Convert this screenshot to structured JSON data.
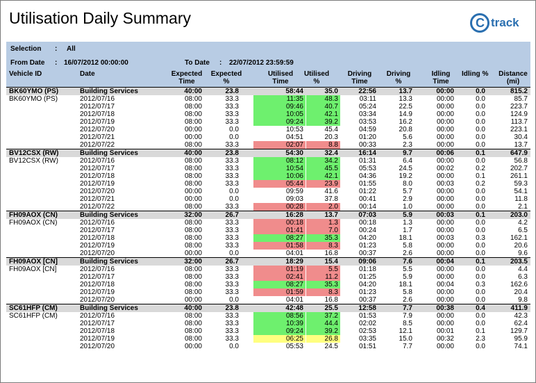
{
  "report": {
    "title": "Utilisation Daily Summary",
    "logo_text": "track",
    "logo_mark": "C",
    "selection_label": "Selection",
    "selection_value": "All",
    "from_label": "From Date",
    "from_value": "16/07/2012 00:00:00",
    "to_label": "To Date",
    "to_value": "22/07/2012 23:59:59",
    "colon": ":"
  },
  "columns": {
    "vehicle": "Vehicle ID",
    "date": "Date",
    "expected_time": [
      "Expected",
      "Time"
    ],
    "expected_pct": [
      "Expected",
      "%"
    ],
    "utilised_time": [
      "Utilised",
      "Time"
    ],
    "utilised_pct": [
      "Utilised",
      "%"
    ],
    "driving_time": [
      "Driving",
      "Time"
    ],
    "driving_pct": [
      "Driving",
      "%"
    ],
    "idling_time": [
      "Idling",
      "Time"
    ],
    "idling_pct": [
      "Idling %",
      ""
    ],
    "distance": [
      "Distance",
      "(mi)"
    ]
  },
  "colors": {
    "green": "#6ef06e",
    "red": "#f08c8c",
    "yellow": "#ffff80",
    "header_bg": "#b8cce4",
    "group_bg": "#d9d9d9"
  },
  "rows": [
    {
      "g": 1,
      "veh": "BK60YMO (PS)",
      "date": "Building Services",
      "exp": "40:00",
      "expp": "23.8",
      "util": "58:44",
      "utilp": "35.0",
      "drv": "22:56",
      "drvp": "13.7",
      "idl": "00:00",
      "idlp": "0.0",
      "dist": "815.2",
      "hl": ""
    },
    {
      "g": 0,
      "veh": "BK60YMO (PS)",
      "date": "2012/07/16",
      "exp": "08:00",
      "expp": "33.3",
      "util": "11:35",
      "utilp": "48.3",
      "drv": "03:11",
      "drvp": "13.3",
      "idl": "00:00",
      "idlp": "0.0",
      "dist": "85.7",
      "hl": "green"
    },
    {
      "g": 0,
      "veh": "",
      "date": "2012/07/17",
      "exp": "08:00",
      "expp": "33.3",
      "util": "09:46",
      "utilp": "40.7",
      "drv": "05:24",
      "drvp": "22.5",
      "idl": "00:00",
      "idlp": "0.0",
      "dist": "223.7",
      "hl": "green"
    },
    {
      "g": 0,
      "veh": "",
      "date": "2012/07/18",
      "exp": "08:00",
      "expp": "33.3",
      "util": "10:05",
      "utilp": "42.1",
      "drv": "03:34",
      "drvp": "14.9",
      "idl": "00:00",
      "idlp": "0.0",
      "dist": "124.9",
      "hl": "green"
    },
    {
      "g": 0,
      "veh": "",
      "date": "2012/07/19",
      "exp": "08:00",
      "expp": "33.3",
      "util": "09:24",
      "utilp": "39.2",
      "drv": "03:53",
      "drvp": "16.2",
      "idl": "00:00",
      "idlp": "0.0",
      "dist": "113.7",
      "hl": "green"
    },
    {
      "g": 0,
      "veh": "",
      "date": "2012/07/20",
      "exp": "00:00",
      "expp": "0.0",
      "util": "10:53",
      "utilp": "45.4",
      "drv": "04:59",
      "drvp": "20.8",
      "idl": "00:00",
      "idlp": "0.0",
      "dist": "223.1",
      "hl": ""
    },
    {
      "g": 0,
      "veh": "",
      "date": "2012/07/21",
      "exp": "00:00",
      "expp": "0.0",
      "util": "04:51",
      "utilp": "20.3",
      "drv": "01:20",
      "drvp": "5.6",
      "idl": "00:00",
      "idlp": "0.0",
      "dist": "30.4",
      "hl": ""
    },
    {
      "g": 0,
      "veh": "",
      "date": "2012/07/22",
      "exp": "08:00",
      "expp": "33.3",
      "util": "02:07",
      "utilp": "8.8",
      "drv": "00:33",
      "drvp": "2.3",
      "idl": "00:00",
      "idlp": "0.0",
      "dist": "13.7",
      "hl": "red"
    },
    {
      "g": 1,
      "veh": "BV12CSX (RW)",
      "date": "Building Services",
      "exp": "40:00",
      "expp": "23.8",
      "util": "54:30",
      "utilp": "32.4",
      "drv": "16:14",
      "drvp": "9.7",
      "idl": "00:06",
      "idlp": "0.1",
      "dist": "647.9",
      "hl": ""
    },
    {
      "g": 0,
      "veh": "BV12CSX (RW)",
      "date": "2012/07/16",
      "exp": "08:00",
      "expp": "33.3",
      "util": "08:12",
      "utilp": "34.2",
      "drv": "01:31",
      "drvp": "6.4",
      "idl": "00:00",
      "idlp": "0.0",
      "dist": "56.8",
      "hl": "green"
    },
    {
      "g": 0,
      "veh": "",
      "date": "2012/07/17",
      "exp": "08:00",
      "expp": "33.3",
      "util": "10:54",
      "utilp": "45.5",
      "drv": "05:53",
      "drvp": "24.5",
      "idl": "00:02",
      "idlp": "0.2",
      "dist": "202.7",
      "hl": "green"
    },
    {
      "g": 0,
      "veh": "",
      "date": "2012/07/18",
      "exp": "08:00",
      "expp": "33.3",
      "util": "10:06",
      "utilp": "42.1",
      "drv": "04:36",
      "drvp": "19.2",
      "idl": "00:00",
      "idlp": "0.1",
      "dist": "261.1",
      "hl": "green"
    },
    {
      "g": 0,
      "veh": "",
      "date": "2012/07/19",
      "exp": "08:00",
      "expp": "33.3",
      "util": "05:44",
      "utilp": "23.9",
      "drv": "01:55",
      "drvp": "8.0",
      "idl": "00:03",
      "idlp": "0.2",
      "dist": "59.3",
      "hl": "red"
    },
    {
      "g": 0,
      "veh": "",
      "date": "2012/07/20",
      "exp": "00:00",
      "expp": "0.0",
      "util": "09:59",
      "utilp": "41.6",
      "drv": "01:22",
      "drvp": "5.7",
      "idl": "00:00",
      "idlp": "0.0",
      "dist": "54.1",
      "hl": ""
    },
    {
      "g": 0,
      "veh": "",
      "date": "2012/07/21",
      "exp": "00:00",
      "expp": "0.0",
      "util": "09:03",
      "utilp": "37.8",
      "drv": "00:41",
      "drvp": "2.9",
      "idl": "00:00",
      "idlp": "0.0",
      "dist": "11.8",
      "hl": ""
    },
    {
      "g": 0,
      "veh": "",
      "date": "2012/07/22",
      "exp": "08:00",
      "expp": "33.3",
      "util": "00:28",
      "utilp": "2.0",
      "drv": "00:14",
      "drvp": "1.0",
      "idl": "00:00",
      "idlp": "0.0",
      "dist": "2.1",
      "hl": "red"
    },
    {
      "g": 1,
      "veh": "FH09AOX (CN)",
      "date": "Building Services",
      "exp": "32:00",
      "expp": "26.7",
      "util": "16:28",
      "utilp": "13.7",
      "drv": "07:03",
      "drvp": "5.9",
      "idl": "00:03",
      "idlp": "0.1",
      "dist": "203.0",
      "hl": ""
    },
    {
      "g": 0,
      "veh": "FH09AOX (CN)",
      "date": "2012/07/16",
      "exp": "08:00",
      "expp": "33.3",
      "util": "00:18",
      "utilp": "1.3",
      "drv": "00:18",
      "drvp": "1.3",
      "idl": "00:00",
      "idlp": "0.0",
      "dist": "4.2",
      "hl": "red"
    },
    {
      "g": 0,
      "veh": "",
      "date": "2012/07/17",
      "exp": "08:00",
      "expp": "33.3",
      "util": "01:41",
      "utilp": "7.0",
      "drv": "00:24",
      "drvp": "1.7",
      "idl": "00:00",
      "idlp": "0.0",
      "dist": "6.5",
      "hl": "red"
    },
    {
      "g": 0,
      "veh": "",
      "date": "2012/07/18",
      "exp": "08:00",
      "expp": "33.3",
      "util": "08:27",
      "utilp": "35.3",
      "drv": "04:20",
      "drvp": "18.1",
      "idl": "00:03",
      "idlp": "0.3",
      "dist": "162.1",
      "hl": "green"
    },
    {
      "g": 0,
      "veh": "",
      "date": "2012/07/19",
      "exp": "08:00",
      "expp": "33.3",
      "util": "01:58",
      "utilp": "8.3",
      "drv": "01:23",
      "drvp": "5.8",
      "idl": "00:00",
      "idlp": "0.0",
      "dist": "20.6",
      "hl": "red"
    },
    {
      "g": 0,
      "veh": "",
      "date": "2012/07/20",
      "exp": "00:00",
      "expp": "0.0",
      "util": "04:01",
      "utilp": "16.8",
      "drv": "00:37",
      "drvp": "2.6",
      "idl": "00:00",
      "idlp": "0.0",
      "dist": "9.6",
      "hl": ""
    },
    {
      "g": 1,
      "veh": "FH09AOX [CN]",
      "date": "Building Services",
      "exp": "32:00",
      "expp": "26.7",
      "util": "18:29",
      "utilp": "15.4",
      "drv": "09:06",
      "drvp": "7.6",
      "idl": "00:04",
      "idlp": "0.1",
      "dist": "203.5",
      "hl": ""
    },
    {
      "g": 0,
      "veh": "FH09AOX [CN]",
      "date": "2012/07/16",
      "exp": "08:00",
      "expp": "33.3",
      "util": "01:19",
      "utilp": "5.5",
      "drv": "01:18",
      "drvp": "5.5",
      "idl": "00:00",
      "idlp": "0.0",
      "dist": "4.4",
      "hl": "red"
    },
    {
      "g": 0,
      "veh": "",
      "date": "2012/07/17",
      "exp": "08:00",
      "expp": "33.3",
      "util": "02:41",
      "utilp": "11.2",
      "drv": "01:25",
      "drvp": "5.9",
      "idl": "00:00",
      "idlp": "0.0",
      "dist": "6.3",
      "hl": "red"
    },
    {
      "g": 0,
      "veh": "",
      "date": "2012/07/18",
      "exp": "08:00",
      "expp": "33.3",
      "util": "08:27",
      "utilp": "35.3",
      "drv": "04:20",
      "drvp": "18.1",
      "idl": "00:04",
      "idlp": "0.3",
      "dist": "162.6",
      "hl": "green"
    },
    {
      "g": 0,
      "veh": "",
      "date": "2012/07/19",
      "exp": "08:00",
      "expp": "33.3",
      "util": "01:59",
      "utilp": "8.3",
      "drv": "01:23",
      "drvp": "5.8",
      "idl": "00:00",
      "idlp": "0.0",
      "dist": "20.4",
      "hl": "red"
    },
    {
      "g": 0,
      "veh": "",
      "date": "2012/07/20",
      "exp": "00:00",
      "expp": "0.0",
      "util": "04:01",
      "utilp": "16.8",
      "drv": "00:37",
      "drvp": "2.6",
      "idl": "00:00",
      "idlp": "0.0",
      "dist": "9.8",
      "hl": ""
    },
    {
      "g": 1,
      "veh": "SC61HFP (CM)",
      "date": "Building Services",
      "exp": "40:00",
      "expp": "23.8",
      "util": "42:48",
      "utilp": "25.5",
      "drv": "12:58",
      "drvp": "7.7",
      "idl": "00:38",
      "idlp": "0.4",
      "dist": "411.9",
      "hl": ""
    },
    {
      "g": 0,
      "veh": "SC61HFP (CM)",
      "date": "2012/07/16",
      "exp": "08:00",
      "expp": "33.3",
      "util": "08:56",
      "utilp": "37.2",
      "drv": "01:53",
      "drvp": "7.9",
      "idl": "00:00",
      "idlp": "0.0",
      "dist": "42.3",
      "hl": "green"
    },
    {
      "g": 0,
      "veh": "",
      "date": "2012/07/17",
      "exp": "08:00",
      "expp": "33.3",
      "util": "10:39",
      "utilp": "44.4",
      "drv": "02:02",
      "drvp": "8.5",
      "idl": "00:00",
      "idlp": "0.0",
      "dist": "62.4",
      "hl": "green"
    },
    {
      "g": 0,
      "veh": "",
      "date": "2012/07/18",
      "exp": "08:00",
      "expp": "33.3",
      "util": "09:24",
      "utilp": "39.2",
      "drv": "02:53",
      "drvp": "12.1",
      "idl": "00:01",
      "idlp": "0.1",
      "dist": "129.7",
      "hl": "green"
    },
    {
      "g": 0,
      "veh": "",
      "date": "2012/07/19",
      "exp": "08:00",
      "expp": "33.3",
      "util": "06:25",
      "utilp": "26.8",
      "drv": "03:35",
      "drvp": "15.0",
      "idl": "00:32",
      "idlp": "2.3",
      "dist": "95.9",
      "hl": "yellow"
    },
    {
      "g": 0,
      "veh": "",
      "date": "2012/07/20",
      "exp": "00:00",
      "expp": "0.0",
      "util": "05:53",
      "utilp": "24.5",
      "drv": "01:51",
      "drvp": "7.7",
      "idl": "00:00",
      "idlp": "0.0",
      "dist": "74.1",
      "hl": ""
    }
  ]
}
